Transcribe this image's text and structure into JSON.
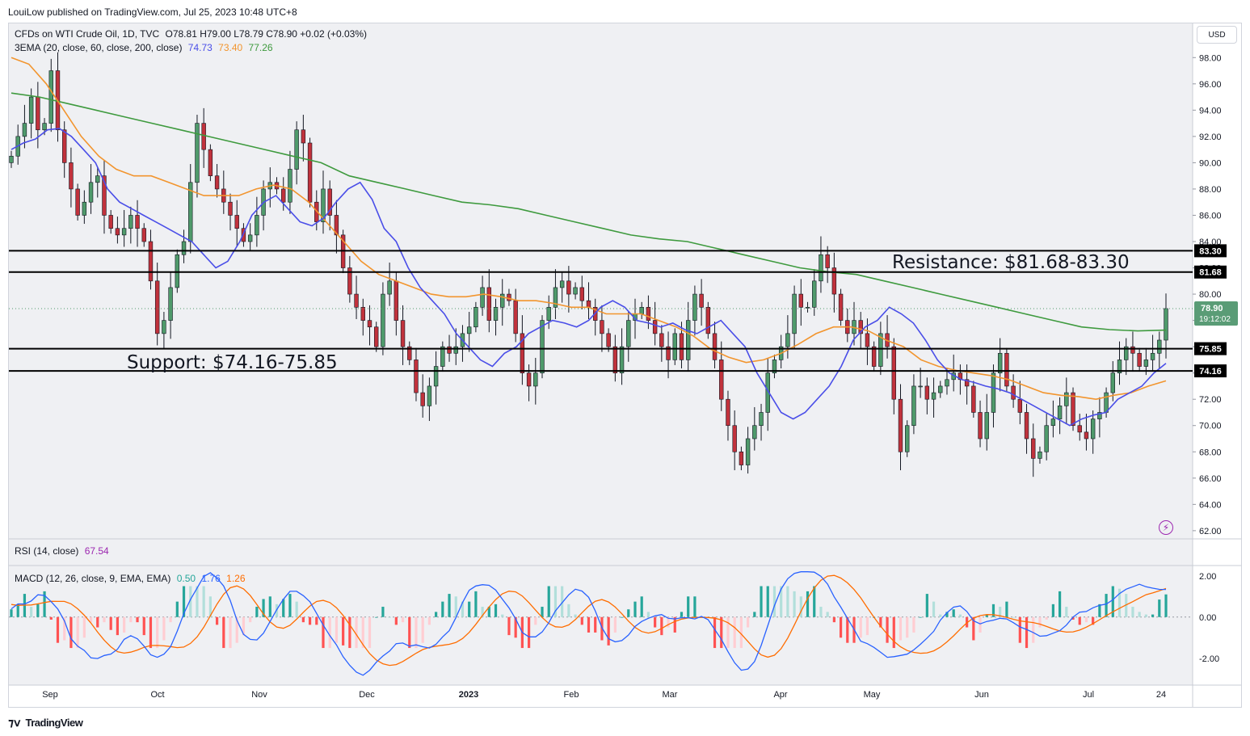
{
  "header": {
    "publisher": "LouiLow published on TradingView.com, Jul 25, 2023 10:48 UTC+8"
  },
  "legend": {
    "symbol": "CFDs on WTI Crude Oil, 1D, TVC",
    "ohlc": "O78.81 H79.00 L78.79 C78.90 +0.02 (+0.03%)",
    "ema_label": "3EMA (20, close, 60, close, 200, close)",
    "ema20": "74.73",
    "ema60": "73.40",
    "ema200": "77.26",
    "rsi_label": "RSI (14, close)",
    "rsi_value": "67.54",
    "macd_label": "MACD (12, 26, close, 9, EMA, EMA)",
    "macd_hist": "0.50",
    "macd_line": "1.76",
    "macd_signal": "1.26"
  },
  "currency_button": "USD",
  "price_badge": {
    "price": "78.90",
    "countdown": "19:12:02"
  },
  "footer": {
    "brand": "TradingView"
  },
  "colors": {
    "ema20": "#4a4ee8",
    "ema60": "#f2952e",
    "ema200": "#3e9a3e",
    "up": "#4f9a6b",
    "down": "#c1323c",
    "rsi": "#9c27b0",
    "macd": "#2962ff",
    "signal": "#ff6d00"
  },
  "chart_data": [
    {
      "type": "candlestick",
      "x_axis_labels": [
        "Sep",
        "Oct",
        "Nov",
        "Dec",
        "2023",
        "Feb",
        "Mar",
        "Apr",
        "May",
        "Jun",
        "Jul",
        "24"
      ],
      "y_axis_ticks": [
        "98.00",
        "96.00",
        "94.00",
        "92.00",
        "90.00",
        "88.00",
        "86.00",
        "84.00",
        "82.00",
        "80.00",
        "78.00",
        "76.00",
        "74.00",
        "72.00",
        "70.00",
        "68.00",
        "66.00",
        "64.00",
        "62.00"
      ],
      "ylim": [
        61.5,
        99
      ],
      "close_path": [
        90.5,
        92,
        93,
        95,
        92.5,
        93,
        97,
        92.5,
        90,
        88,
        86,
        87,
        88.5,
        89,
        86,
        85,
        84.5,
        85,
        86,
        85,
        84,
        81,
        77,
        78,
        80.5,
        83,
        84,
        88.5,
        93,
        91,
        89,
        88,
        87,
        86,
        85,
        84,
        84.5,
        86,
        88,
        88.5,
        88,
        87,
        89.5,
        92.5,
        91.5,
        87,
        85.5,
        88,
        86,
        84.5,
        82,
        80,
        79,
        78,
        77.5,
        76,
        80,
        81,
        78,
        76,
        75,
        72.5,
        71.5,
        73,
        74.5,
        76,
        75.5,
        76,
        77,
        77.5,
        79,
        80.5,
        78,
        79,
        80,
        79.5,
        77,
        74,
        73,
        74,
        78,
        79,
        80.5,
        81,
        80,
        80.5,
        79.5,
        79,
        78,
        77,
        76,
        74,
        76,
        78,
        78.5,
        79,
        78,
        77,
        76,
        75,
        77,
        75,
        78,
        80,
        79,
        77,
        75,
        72,
        70,
        68,
        67,
        69,
        70,
        71,
        74,
        75,
        76,
        77,
        80,
        79,
        79,
        81,
        83,
        82,
        80,
        78,
        77,
        78,
        77,
        76,
        74.5,
        77,
        76,
        72,
        68,
        70,
        73,
        73,
        72,
        72.5,
        73,
        73.5,
        74,
        73.5,
        73,
        71,
        69,
        71,
        74,
        75.5,
        73,
        72,
        71,
        69,
        67.5,
        68,
        70,
        70.5,
        71.5,
        72.5,
        70,
        69.5,
        69,
        70.5,
        71,
        72.5,
        74,
        75,
        76,
        75.5,
        74.5,
        75,
        75.5,
        76.5,
        78.9
      ],
      "horizontal_levels": [
        83.3,
        81.68,
        75.85,
        74.16
      ],
      "annotations": [
        "Resistance: $81.68-83.30",
        "Support: $74.16-75.85"
      ],
      "level_labels": [
        "83.30",
        "81.68",
        "75.85",
        "74.16"
      ],
      "ema20_path": [
        91,
        91.5,
        91.8,
        92.5,
        92.6,
        92,
        91,
        90,
        88,
        87,
        86.5,
        86,
        85.5,
        85,
        84.5,
        84,
        83,
        82,
        82.5,
        84,
        86,
        87,
        87.5,
        86.5,
        85.5,
        85.2,
        85.8,
        87,
        88,
        88.5,
        87.2,
        85,
        84,
        82,
        80.5,
        79.5,
        78.5,
        77,
        76,
        75,
        74.5,
        75.5,
        76,
        77,
        77.5,
        78,
        77.8,
        77.5,
        78,
        79,
        79.5,
        79,
        78,
        77.8,
        77.5,
        77.8,
        77.3,
        77,
        77.5,
        78,
        77,
        76,
        74,
        72.5,
        71,
        70.5,
        71,
        72,
        73,
        74.5,
        76.5,
        77.5,
        78,
        79,
        78.5,
        77.8,
        76.5,
        75,
        74,
        73.5,
        73.3,
        73,
        72.8,
        72.5,
        72,
        71.5,
        71,
        70.5,
        70,
        70.5,
        70.8,
        71,
        72,
        72.5,
        73,
        74,
        74.73
      ],
      "ema60_path": [
        98,
        97.5,
        96,
        94,
        92,
        90.5,
        89.5,
        89,
        89,
        88.5,
        88,
        87.5,
        87.5,
        87.5,
        88,
        88.3,
        88,
        87,
        85.5,
        84,
        82.5,
        81.5,
        81,
        80.5,
        80,
        79.8,
        79.8,
        80,
        79.8,
        79.5,
        79.5,
        79.3,
        79,
        79,
        78.5,
        78.5,
        78.5,
        78,
        77.5,
        76.8,
        75.8,
        75.2,
        74.8,
        75,
        75.5,
        76.2,
        77,
        77.5,
        77.5,
        77.2,
        76.5,
        76,
        75,
        74.5,
        74.2,
        74,
        73.8,
        73.5,
        73,
        72.5,
        72.3,
        72.2,
        72,
        72.3,
        72.5,
        73,
        73.4
      ],
      "ema200_path": [
        95.3,
        95,
        94.5,
        94,
        93.5,
        93,
        92.5,
        92,
        91.5,
        91,
        90.5,
        90,
        89,
        88.5,
        88,
        87.5,
        87,
        86.8,
        86.5,
        86,
        85.5,
        85,
        84.5,
        84.2,
        84,
        83.5,
        83,
        82.5,
        82,
        81.7,
        81.5,
        81,
        80.5,
        80,
        79.5,
        79,
        78.5,
        78,
        77.5,
        77.3,
        77.2,
        77.26
      ]
    },
    {
      "type": "line",
      "name": "RSI (14, close)",
      "values": [
        67.54
      ]
    },
    {
      "type": "bar",
      "name": "MACD (12, 26, close, 9, EMA, EMA)",
      "y_axis_ticks": [
        "2.00",
        "0.00",
        "-2.00"
      ],
      "ylim": [
        -3.3,
        2.5
      ]
    }
  ]
}
